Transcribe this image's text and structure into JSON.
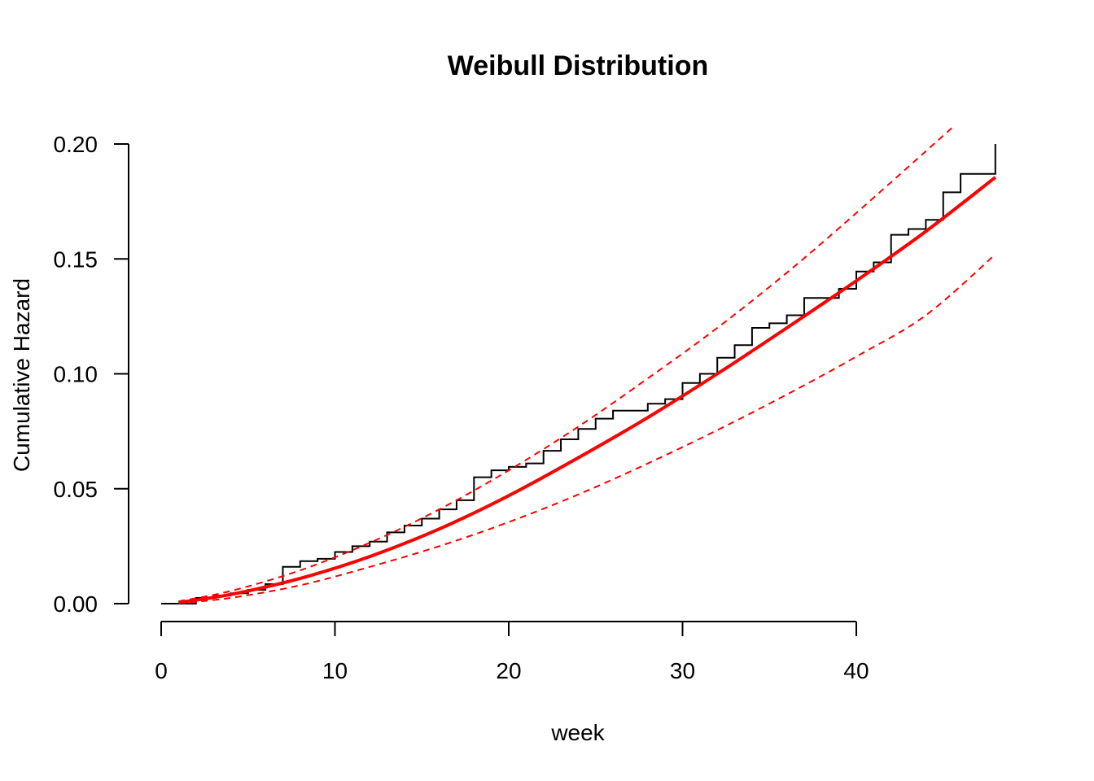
{
  "chart_data": {
    "type": "line",
    "title": "Weibull Distribution",
    "xlabel": "week",
    "ylabel": "Cumulative Hazard",
    "xlim": [
      0,
      48
    ],
    "ylim": [
      0,
      0.2
    ],
    "x_ticks": [
      0,
      10,
      20,
      30,
      40
    ],
    "x_tick_labels": [
      "0",
      "10",
      "20",
      "30",
      "40"
    ],
    "y_ticks": [
      0,
      0.05,
      0.1,
      0.15,
      0.2
    ],
    "y_tick_labels": [
      "0.00",
      "0.05",
      "0.10",
      "0.15",
      "0.20"
    ],
    "grid": false,
    "series": [
      {
        "kind": "step",
        "color": "#000000",
        "x": [
          0,
          1,
          2,
          3,
          4,
          5,
          6,
          7,
          8,
          9,
          10,
          11,
          12,
          13,
          14,
          15,
          16,
          17,
          18,
          19,
          20,
          21,
          22,
          23,
          24,
          25,
          26,
          27,
          28,
          29,
          30,
          31,
          32,
          33,
          34,
          35,
          36,
          37,
          38,
          39,
          40,
          41,
          42,
          43,
          44,
          45,
          46,
          47,
          48
        ],
        "y": [
          0,
          0,
          0.0025,
          0.0035,
          0.0045,
          0.006,
          0.0085,
          0.016,
          0.0185,
          0.0195,
          0.0225,
          0.025,
          0.027,
          0.031,
          0.034,
          0.037,
          0.041,
          0.045,
          0.055,
          0.058,
          0.0595,
          0.061,
          0.0665,
          0.0715,
          0.076,
          0.0805,
          0.084,
          0.084,
          0.087,
          0.089,
          0.096,
          0.1,
          0.107,
          0.1125,
          0.12,
          0.122,
          0.1255,
          0.133,
          0.133,
          0.137,
          0.1445,
          0.1485,
          0.1605,
          0.163,
          0.167,
          0.179,
          0.187,
          0.187,
          0.2
        ]
      },
      {
        "kind": "fit",
        "color": "#ff0000",
        "dashed": false,
        "x": [
          1,
          4,
          8,
          12,
          16,
          20,
          24,
          28,
          32,
          36,
          40,
          44,
          48
        ],
        "y": [
          0.0005,
          0.004,
          0.011,
          0.0205,
          0.0325,
          0.047,
          0.0635,
          0.081,
          0.1,
          0.12,
          0.1405,
          0.162,
          0.1855
        ]
      },
      {
        "kind": "upper-ci",
        "color": "#ff0000",
        "dashed": true,
        "x": [
          1,
          4,
          8,
          12,
          16,
          20,
          24,
          28,
          32,
          36,
          40,
          45.5
        ],
        "y": [
          0.001,
          0.0055,
          0.0145,
          0.0265,
          0.041,
          0.058,
          0.077,
          0.098,
          0.12,
          0.144,
          0.17,
          0.207
        ]
      },
      {
        "kind": "lower-ci",
        "color": "#ff0000",
        "dashed": true,
        "x": [
          1,
          4,
          8,
          12,
          16,
          20,
          24,
          28,
          32,
          36,
          40,
          44,
          48
        ],
        "y": [
          0.0002,
          0.0025,
          0.008,
          0.016,
          0.025,
          0.0355,
          0.0475,
          0.061,
          0.0755,
          0.091,
          0.1075,
          0.1255,
          0.152
        ]
      }
    ]
  }
}
